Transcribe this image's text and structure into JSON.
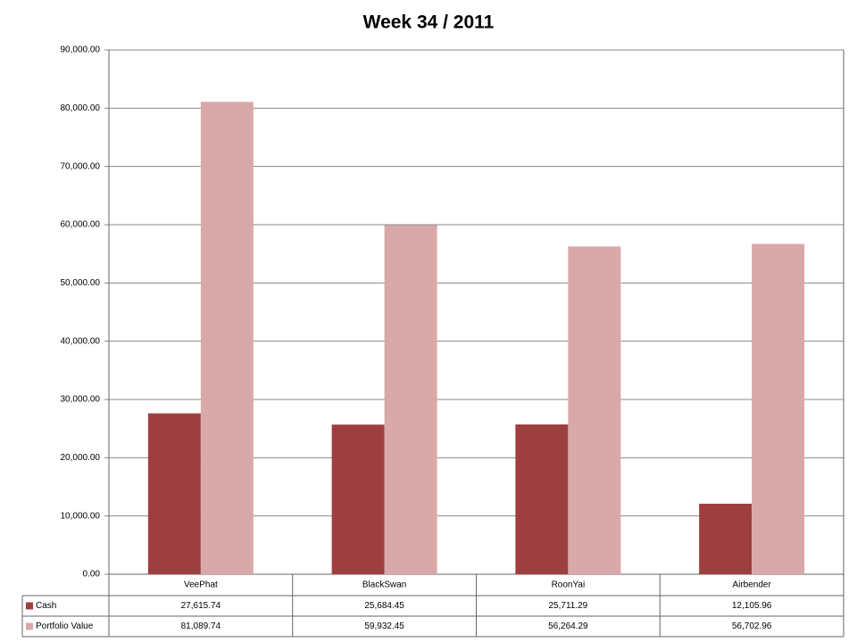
{
  "chart_data": {
    "type": "bar",
    "title": "Week 34 / 2011",
    "categories": [
      "VeePhat",
      "BlackSwan",
      "RoonYai",
      "Airbender"
    ],
    "series": [
      {
        "name": "Cash",
        "color": "#9e3f3f",
        "values": [
          27615.74,
          25684.45,
          25711.29,
          12105.96
        ],
        "value_labels": [
          "27,615.74",
          "25,684.45",
          "25,711.29",
          "12,105.96"
        ]
      },
      {
        "name": "Portfolio Value",
        "color": "#d9a9a9",
        "values": [
          81089.74,
          59932.45,
          56264.29,
          56702.96
        ],
        "value_labels": [
          "81,089.74",
          "59,932.45",
          "56,264.29",
          "56,702.96"
        ]
      }
    ],
    "ylim": [
      0,
      90000
    ],
    "yticks": [
      {
        "value": 0,
        "label": "0.00"
      },
      {
        "value": 10000,
        "label": "10,000.00"
      },
      {
        "value": 20000,
        "label": "20,000.00"
      },
      {
        "value": 30000,
        "label": "30,000.00"
      },
      {
        "value": 40000,
        "label": "40,000.00"
      },
      {
        "value": 50000,
        "label": "50,000.00"
      },
      {
        "value": 60000,
        "label": "60,000.00"
      },
      {
        "value": 70000,
        "label": "70,000.00"
      },
      {
        "value": 80000,
        "label": "80,000.00"
      },
      {
        "value": 90000,
        "label": "90,000.00"
      }
    ],
    "grid": true
  }
}
